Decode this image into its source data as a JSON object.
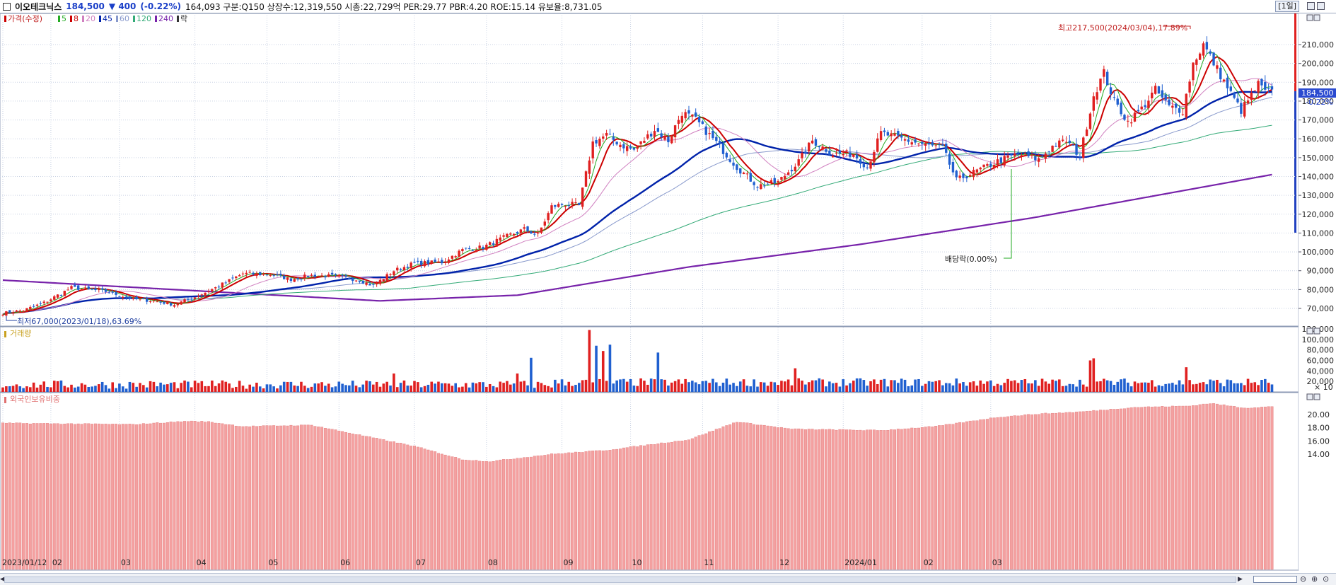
{
  "header": {
    "name": "이오테크닉스",
    "price": "184,500",
    "change": "▼ 400",
    "change_pct": "(-0.22%)",
    "info": "164,093  구분:Q150 상장수:12,319,550 시총:22,729억 PER:29.77 PBR:4.20 ROE:15.14 유보율:8,731.05",
    "period": "[1일]"
  },
  "price_panel": {
    "legend": [
      {
        "label": "가격(수정)",
        "color": "#cc0000"
      },
      {
        "label": "5",
        "color": "#22aa22"
      },
      {
        "label": "8",
        "color": "#cc0000"
      },
      {
        "label": "20",
        "color": "#d080c0"
      },
      {
        "label": "45",
        "color": "#0022aa"
      },
      {
        "label": "60",
        "color": "#8899cc"
      },
      {
        "label": "120",
        "color": "#33aa77"
      },
      {
        "label": "240",
        "color": "#7722aa"
      },
      {
        "label": "락",
        "color": "#333333"
      }
    ],
    "current_price_label": "184,500",
    "current_change_label": "-0.22%",
    "high_annotation": "최고217,500(2024/03/04),17.89%",
    "low_annotation": "최저67,000(2023/01/18),63.69%",
    "dividend_annotation": "배당락(0.00%)"
  },
  "volume_panel": {
    "legend": "거래량",
    "multiplier": "× 10"
  },
  "foreign_panel": {
    "legend": "외국인보유비중"
  },
  "x_axis": {
    "labels": [
      "2023/01/12",
      "02",
      "03",
      "04",
      "05",
      "06",
      "07",
      "08",
      "09",
      "10",
      "11",
      "12",
      "2024/01",
      "02",
      "03"
    ]
  },
  "chart_data": {
    "type": "candlestick",
    "price_y_ticks": [
      "210,000",
      "200,000",
      "190,000",
      "180,000",
      "170,000",
      "160,000",
      "150,000",
      "140,000",
      "130,000",
      "120,000",
      "110,000",
      "100,000",
      "90,000",
      "80,000",
      "70,000"
    ],
    "volume_y_ticks": [
      "120,000",
      "100,000",
      "80,000",
      "60,000",
      "40,000",
      "20,000"
    ],
    "foreign_y_ticks": [
      "20.00",
      "18.00",
      "16.00",
      "14.00"
    ],
    "price_anchors": [
      {
        "i": 0,
        "v": 67500
      },
      {
        "i": 6,
        "v": 69000
      },
      {
        "i": 12,
        "v": 73000
      },
      {
        "i": 20,
        "v": 81000
      },
      {
        "i": 30,
        "v": 79000
      },
      {
        "i": 38,
        "v": 75000
      },
      {
        "i": 44,
        "v": 74000
      },
      {
        "i": 50,
        "v": 72000
      },
      {
        "i": 56,
        "v": 76000
      },
      {
        "i": 62,
        "v": 81000
      },
      {
        "i": 70,
        "v": 88500
      },
      {
        "i": 78,
        "v": 88000
      },
      {
        "i": 84,
        "v": 85500
      },
      {
        "i": 90,
        "v": 87500
      },
      {
        "i": 98,
        "v": 87000
      },
      {
        "i": 104,
        "v": 85000
      },
      {
        "i": 108,
        "v": 82000
      },
      {
        "i": 114,
        "v": 90000
      },
      {
        "i": 120,
        "v": 94000
      },
      {
        "i": 128,
        "v": 94500
      },
      {
        "i": 134,
        "v": 101000
      },
      {
        "i": 140,
        "v": 102500
      },
      {
        "i": 146,
        "v": 107500
      },
      {
        "i": 152,
        "v": 112000
      },
      {
        "i": 156,
        "v": 109000
      },
      {
        "i": 160,
        "v": 124000
      },
      {
        "i": 164,
        "v": 125500
      },
      {
        "i": 168,
        "v": 124500
      },
      {
        "i": 172,
        "v": 158000
      },
      {
        "i": 176,
        "v": 162000
      },
      {
        "i": 180,
        "v": 157000
      },
      {
        "i": 184,
        "v": 154000
      },
      {
        "i": 190,
        "v": 165000
      },
      {
        "i": 194,
        "v": 159000
      },
      {
        "i": 198,
        "v": 174000
      },
      {
        "i": 202,
        "v": 170000
      },
      {
        "i": 208,
        "v": 158000
      },
      {
        "i": 214,
        "v": 145000
      },
      {
        "i": 220,
        "v": 135000
      },
      {
        "i": 226,
        "v": 137000
      },
      {
        "i": 232,
        "v": 148000
      },
      {
        "i": 236,
        "v": 159000
      },
      {
        "i": 242,
        "v": 152000
      },
      {
        "i": 248,
        "v": 152000
      },
      {
        "i": 252,
        "v": 145000
      },
      {
        "i": 256,
        "v": 163000
      },
      {
        "i": 262,
        "v": 160000
      },
      {
        "i": 268,
        "v": 157000
      },
      {
        "i": 274,
        "v": 155000
      },
      {
        "i": 278,
        "v": 138000
      },
      {
        "i": 284,
        "v": 143000
      },
      {
        "i": 290,
        "v": 148000
      },
      {
        "i": 296,
        "v": 152000
      },
      {
        "i": 302,
        "v": 149000
      },
      {
        "i": 306,
        "v": 156000
      },
      {
        "i": 310,
        "v": 159000
      },
      {
        "i": 314,
        "v": 151000
      },
      {
        "i": 318,
        "v": 183000
      },
      {
        "i": 321,
        "v": 195000
      },
      {
        "i": 324,
        "v": 180000
      },
      {
        "i": 328,
        "v": 169000
      },
      {
        "i": 332,
        "v": 176000
      },
      {
        "i": 336,
        "v": 186000
      },
      {
        "i": 340,
        "v": 177000
      },
      {
        "i": 344,
        "v": 175000
      },
      {
        "i": 347,
        "v": 200000
      },
      {
        "i": 350,
        "v": 210000
      },
      {
        "i": 354,
        "v": 197000
      },
      {
        "i": 358,
        "v": 184000
      },
      {
        "i": 361,
        "v": 175000
      },
      {
        "i": 364,
        "v": 183000
      },
      {
        "i": 366,
        "v": 189000
      },
      {
        "i": 368,
        "v": 185000
      },
      {
        "i": 370,
        "v": 184500
      }
    ],
    "volume_bursts": [
      {
        "i": 171,
        "v": 118000
      },
      {
        "i": 173,
        "v": 88000
      },
      {
        "i": 175,
        "v": 78000
      },
      {
        "i": 177,
        "v": 90000
      },
      {
        "i": 154,
        "v": 65000
      },
      {
        "i": 191,
        "v": 75000
      },
      {
        "i": 317,
        "v": 60000
      },
      {
        "i": 318,
        "v": 64000
      },
      {
        "i": 345,
        "v": 47000
      },
      {
        "i": 231,
        "v": 45000
      },
      {
        "i": 114,
        "v": 35000
      },
      {
        "i": 150,
        "v": 35000
      }
    ],
    "foreign_anchors": [
      {
        "i": 0,
        "v": 18.7
      },
      {
        "i": 20,
        "v": 18.6
      },
      {
        "i": 38,
        "v": 18.5
      },
      {
        "i": 54,
        "v": 19.0
      },
      {
        "i": 60,
        "v": 18.9
      },
      {
        "i": 70,
        "v": 18.2
      },
      {
        "i": 90,
        "v": 18.4
      },
      {
        "i": 104,
        "v": 16.9
      },
      {
        "i": 120,
        "v": 15.2
      },
      {
        "i": 134,
        "v": 13.2
      },
      {
        "i": 142,
        "v": 12.9
      },
      {
        "i": 160,
        "v": 14.0
      },
      {
        "i": 176,
        "v": 14.6
      },
      {
        "i": 200,
        "v": 16.2
      },
      {
        "i": 214,
        "v": 18.9
      },
      {
        "i": 230,
        "v": 17.8
      },
      {
        "i": 256,
        "v": 17.6
      },
      {
        "i": 272,
        "v": 18.2
      },
      {
        "i": 290,
        "v": 19.6
      },
      {
        "i": 302,
        "v": 20.1
      },
      {
        "i": 314,
        "v": 20.4
      },
      {
        "i": 330,
        "v": 21.1
      },
      {
        "i": 346,
        "v": 21.3
      },
      {
        "i": 352,
        "v": 21.7
      },
      {
        "i": 362,
        "v": 21.0
      },
      {
        "i": 370,
        "v": 21.2
      }
    ]
  }
}
